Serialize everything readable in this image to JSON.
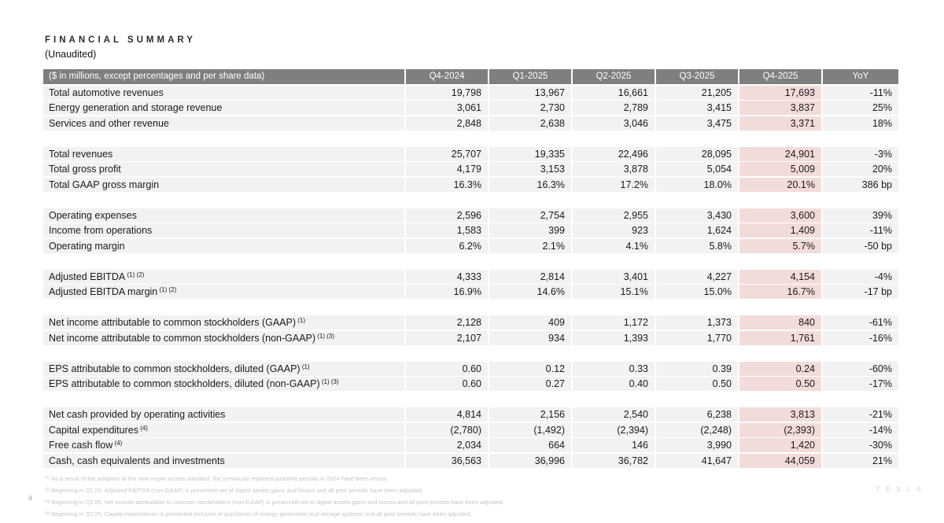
{
  "page": {
    "title": "FINANCIAL SUMMARY",
    "subtitle": "(Unaudited)",
    "page_number": "4",
    "brand": "TESLA"
  },
  "colors": {
    "header_bg": "#7f7f7f",
    "header_text": "#ffffff",
    "row_bg": "#f2f2f2",
    "highlight_bg": "#f2dcda"
  },
  "table": {
    "header": {
      "label": "($ in millions, except percentages and per share data)",
      "columns": [
        "Q4-2024",
        "Q1-2025",
        "Q2-2025",
        "Q3-2025",
        "Q4-2025",
        "YoY"
      ],
      "highlight_column": "Q4-2025"
    },
    "sections": [
      {
        "rows": [
          {
            "label": "Total automotive revenues",
            "sup": "",
            "values": [
              "19,798",
              "13,967",
              "16,661",
              "21,205",
              "17,693",
              "-11%"
            ]
          },
          {
            "label": "Energy generation and storage revenue",
            "sup": "",
            "values": [
              "3,061",
              "2,730",
              "2,789",
              "3,415",
              "3,837",
              "25%"
            ]
          },
          {
            "label": "Services and other revenue",
            "sup": "",
            "values": [
              "2,848",
              "2,638",
              "3,046",
              "3,475",
              "3,371",
              "18%"
            ]
          }
        ]
      },
      {
        "rows": [
          {
            "label": "Total revenues",
            "sup": "",
            "values": [
              "25,707",
              "19,335",
              "22,496",
              "28,095",
              "24,901",
              "-3%"
            ]
          },
          {
            "label": "Total gross profit",
            "sup": "",
            "values": [
              "4,179",
              "3,153",
              "3,878",
              "5,054",
              "5,009",
              "20%"
            ]
          },
          {
            "label": "Total GAAP gross margin",
            "sup": "",
            "values": [
              "16.3%",
              "16.3%",
              "17.2%",
              "18.0%",
              "20.1%",
              "386 bp"
            ]
          }
        ]
      },
      {
        "rows": [
          {
            "label": "Operating expenses",
            "sup": "",
            "values": [
              "2,596",
              "2,754",
              "2,955",
              "3,430",
              "3,600",
              "39%"
            ]
          },
          {
            "label": "Income from operations",
            "sup": "",
            "values": [
              "1,583",
              "399",
              "923",
              "1,624",
              "1,409",
              "-11%"
            ]
          },
          {
            "label": "Operating margin",
            "sup": "",
            "values": [
              "6.2%",
              "2.1%",
              "4.1%",
              "5.8%",
              "5.7%",
              "-50 bp"
            ]
          }
        ]
      },
      {
        "rows": [
          {
            "label": "Adjusted EBITDA",
            "sup": "(1) (2)",
            "values": [
              "4,333",
              "2,814",
              "3,401",
              "4,227",
              "4,154",
              "-4%"
            ]
          },
          {
            "label": "Adjusted EBITDA margin",
            "sup": "(1) (2)",
            "values": [
              "16.9%",
              "14.6%",
              "15.1%",
              "15.0%",
              "16.7%",
              "-17 bp"
            ]
          }
        ]
      },
      {
        "rows": [
          {
            "label": "Net income attributable to common stockholders (GAAP)",
            "sup": "(1)",
            "values": [
              "2,128",
              "409",
              "1,172",
              "1,373",
              "840",
              "-61%"
            ]
          },
          {
            "label": "Net income attributable to common stockholders (non-GAAP)",
            "sup": "(1) (3)",
            "values": [
              "2,107",
              "934",
              "1,393",
              "1,770",
              "1,761",
              "-16%"
            ]
          }
        ]
      },
      {
        "rows": [
          {
            "label": "EPS attributable to common stockholders, diluted (GAAP)",
            "sup": "(1)",
            "values": [
              "0.60",
              "0.12",
              "0.33",
              "0.39",
              "0.24",
              "-60%"
            ]
          },
          {
            "label": "EPS attributable to common stockholders, diluted (non-GAAP)",
            "sup": "(1) (3)",
            "values": [
              "0.60",
              "0.27",
              "0.40",
              "0.50",
              "0.50",
              "-17%"
            ]
          }
        ]
      },
      {
        "rows": [
          {
            "label": "Net cash provided by operating activities",
            "sup": "",
            "values": [
              "4,814",
              "2,156",
              "2,540",
              "6,238",
              "3,813",
              "-21%"
            ]
          },
          {
            "label": "Capital expenditures",
            "sup": "(4)",
            "values": [
              "(2,780)",
              "(1,492)",
              "(2,394)",
              "(2,248)",
              "(2,393)",
              "-14%"
            ]
          },
          {
            "label": "Free cash flow",
            "sup": "(4)",
            "values": [
              "2,034",
              "664",
              "146",
              "3,990",
              "1,420",
              "-30%"
            ]
          },
          {
            "label": "Cash, cash equivalents and investments",
            "sup": "",
            "values": [
              "36,563",
              "36,996",
              "36,782",
              "41,647",
              "44,059",
              "21%"
            ]
          }
        ]
      }
    ]
  },
  "footnotes": [
    {
      "marker": "(1)",
      "text": "As a result of the adoption of the new crypto assets standard, the previously reported quarterly periods in 2024 have been recast."
    },
    {
      "marker": "(2)",
      "text": "Beginning in Q1'25, Adjusted EBITDA (non-GAAP) is presented net of digital assets gains and losses and all prior periods have been adjusted."
    },
    {
      "marker": "(3)",
      "text": "Beginning in Q1'25, Net income attributable to common stockholders (non-GAAP) is presented net of digital assets gains and losses and all prior periods have been adjusted."
    },
    {
      "marker": "(4)",
      "text": "Beginning in Q1'25, Capital expenditures is presented inclusive of purchases of energy generation and storage systems and all prior periods have been adjusted."
    }
  ]
}
